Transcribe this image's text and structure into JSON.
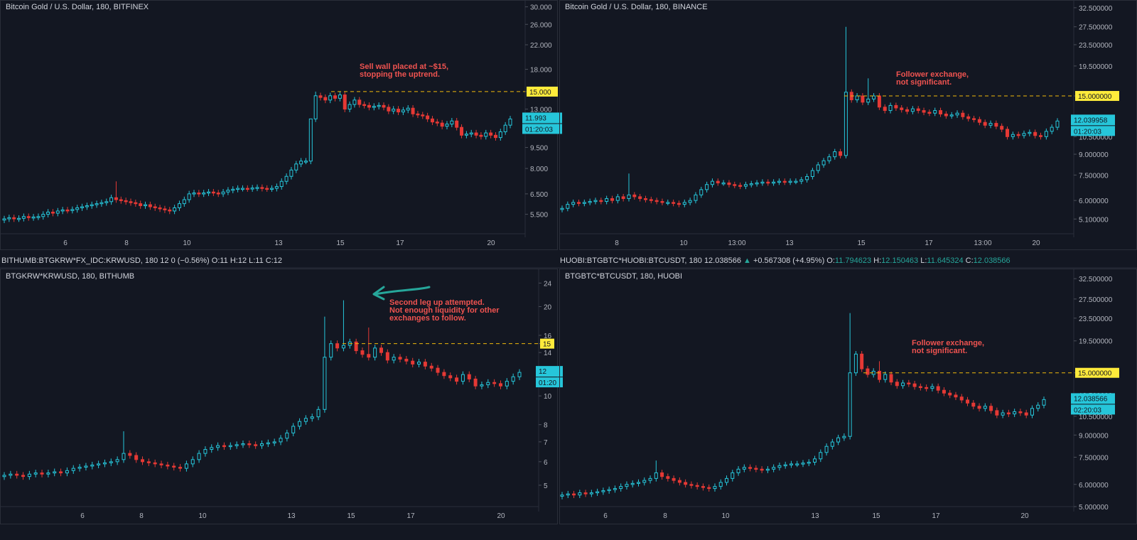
{
  "theme": {
    "background": "#131722",
    "panel_border": "#2a2e39",
    "text": "#d1d4dc",
    "axis_text": "#b2b5be",
    "up_color": "#26c6da",
    "down_color": "#e53935",
    "highlight_yellow": "#ffeb3b",
    "annotation_color": "#ef5350",
    "arrow_color": "#26a69a"
  },
  "panels": [
    {
      "id": "bitfinex",
      "title": "Bitcoin Gold / U.S. Dollar, 180, BITFINEX",
      "price_label": "11.993",
      "countdown": "01:20:03",
      "hline_label": "15.000",
      "annotation": [
        "Sell wall placed at ~$15,",
        "stopping the uptrend."
      ]
    },
    {
      "id": "binance",
      "title": "Bitcoin Gold / U.S. Dollar, 180, BINANCE",
      "price_label": "12.039958",
      "countdown": "01:20:03",
      "hline_label": "15.000000",
      "annotation": [
        "Follower exchange,",
        "not significant."
      ]
    },
    {
      "id": "bithumb",
      "header": "BITHUMB:BTGKRW*FX_IDC:KRWUSD, 180  12 0 (−0.56%) O:11 H:12 L:11 C:12",
      "title": "BTGKRW*KRWUSD, 180, BITHUMB",
      "price_label": "12",
      "countdown": "01:20",
      "hline_label": "15",
      "annotation": [
        "Second leg up attempted.",
        "Not enough liquidity for other",
        "exchanges to follow."
      ]
    },
    {
      "id": "huobi",
      "header": {
        "symbol": "HUOBI:BTGBTC*HUOBI:BTCUSDT, 180",
        "last": "12.038566",
        "change": "+0.567308 (+4.95%)",
        "o_label": "O:",
        "o": "11.794623",
        "h_label": "H:",
        "h": "12.150463",
        "l_label": "L:",
        "l": "11.645324",
        "c_label": "C:",
        "c": "12.038566"
      },
      "title": "BTGBTC*BTCUSDT, 180, HUOBI",
      "price_label": "12.038566",
      "countdown": "02:20:03",
      "hline_label": "15.000000",
      "annotation": [
        "Follower exchange,",
        "not significant."
      ]
    }
  ],
  "chart_data": [
    {
      "type": "candlestick",
      "panel": "bitfinex",
      "y_scale": "log",
      "ylim": [
        5.0,
        31.0
      ],
      "y_ticks": [
        30.0,
        26.0,
        22.0,
        18.0,
        15.0,
        13.0,
        11.0,
        9.5,
        8.0,
        6.5,
        5.5
      ],
      "y_tick_labels": [
        "30.000",
        "26.000",
        "22.000",
        "18.000",
        "15.000",
        "13.000",
        "11.000",
        "9.500",
        "8.000",
        "6.500",
        "5.500"
      ],
      "x_ticks": [
        "6",
        "8",
        "10",
        "13",
        "15",
        "17",
        "20"
      ],
      "horizontal_line": 15.0,
      "last_price": 11.993,
      "closes": [
        5.3,
        5.35,
        5.3,
        5.32,
        5.4,
        5.35,
        5.38,
        5.4,
        5.5,
        5.6,
        5.55,
        5.65,
        5.7,
        5.68,
        5.72,
        5.8,
        5.85,
        5.9,
        5.95,
        6.0,
        6.05,
        6.1,
        6.3,
        6.2,
        6.15,
        6.1,
        6.05,
        6.0,
        5.9,
        5.95,
        5.85,
        5.8,
        5.75,
        5.7,
        5.65,
        5.8,
        6.0,
        6.2,
        6.5,
        6.55,
        6.5,
        6.55,
        6.6,
        6.55,
        6.5,
        6.6,
        6.7,
        6.75,
        6.8,
        6.8,
        6.78,
        6.82,
        6.85,
        6.8,
        6.78,
        6.8,
        6.9,
        7.2,
        7.5,
        7.9,
        8.3,
        8.5,
        8.5,
        12.0,
        14.5,
        14.3,
        14.0,
        14.5,
        14.2,
        14.6,
        13.0,
        13.5,
        14.0,
        13.5,
        13.4,
        13.2,
        13.3,
        13.4,
        13.2,
        12.8,
        13.0,
        12.7,
        12.9,
        13.1,
        12.5,
        12.4,
        12.3,
        12.0,
        11.7,
        11.6,
        11.3,
        11.5,
        11.8,
        11.2,
        10.5,
        10.6,
        10.7,
        10.5,
        10.4,
        10.7,
        10.5,
        10.3,
        10.8,
        11.4,
        11.993
      ],
      "events": [
        {
          "index": 23,
          "high": 7.2
        },
        {
          "index": 63,
          "high": 9.3
        },
        {
          "index": 64,
          "high": 15.0
        }
      ]
    },
    {
      "type": "candlestick",
      "panel": "binance",
      "y_scale": "log",
      "ylim": [
        4.8,
        33.5
      ],
      "y_ticks": [
        32.5,
        27.5,
        23.5,
        19.5,
        15.0,
        12.5,
        10.5,
        9.0,
        7.5,
        6.0,
        5.1
      ],
      "y_tick_labels": [
        "32.500000",
        "27.500000",
        "23.500000",
        "19.500000",
        "15.000000",
        "12.500000",
        "10.500000",
        "9.000000",
        "7.500000",
        "6.000000",
        "5.100000"
      ],
      "x_ticks": [
        "8",
        "10",
        "13:00",
        "13",
        "15",
        "17",
        "13:00",
        "20"
      ],
      "horizontal_line": 15.0,
      "last_price": 12.039958,
      "closes": [
        5.6,
        5.8,
        5.9,
        5.85,
        5.9,
        5.95,
        6.0,
        5.95,
        6.1,
        6.0,
        6.2,
        6.1,
        6.3,
        6.2,
        6.1,
        6.05,
        6.0,
        5.95,
        5.9,
        5.9,
        5.85,
        5.8,
        5.9,
        6.0,
        6.3,
        6.6,
        6.9,
        7.1,
        7.0,
        7.0,
        6.9,
        6.85,
        6.8,
        6.9,
        6.95,
        7.0,
        7.05,
        7.0,
        7.05,
        7.1,
        7.05,
        7.1,
        7.1,
        7.2,
        7.4,
        7.8,
        8.2,
        8.5,
        8.8,
        9.2,
        8.9,
        15.5,
        14.5,
        15.0,
        14.2,
        14.6,
        15.0,
        13.6,
        13.2,
        13.8,
        13.5,
        13.3,
        13.1,
        13.4,
        13.2,
        13.0,
        12.9,
        13.2,
        12.8,
        12.6,
        12.7,
        12.9,
        12.5,
        12.3,
        12.2,
        11.9,
        11.6,
        11.8,
        11.5,
        11.2,
        10.5,
        10.7,
        10.6,
        10.8,
        10.9,
        10.6,
        10.5,
        11.0,
        11.4,
        12.04
      ],
      "events": [
        {
          "index": 12,
          "high": 7.6
        },
        {
          "index": 51,
          "high": 27.5
        },
        {
          "index": 55,
          "high": 17.5
        }
      ]
    },
    {
      "type": "candlestick",
      "panel": "bithumb",
      "y_scale": "log",
      "ylim": [
        4.5,
        25.0
      ],
      "y_ticks": [
        24,
        20,
        16,
        15,
        14,
        12,
        10,
        8,
        7,
        6,
        5
      ],
      "y_tick_labels": [
        "24",
        "20",
        "16",
        "15",
        "14",
        "12",
        "10",
        "8",
        "7",
        "6",
        "5"
      ],
      "x_ticks": [
        "6",
        "8",
        "10",
        "13",
        "15",
        "17",
        "20"
      ],
      "horizontal_line": 15,
      "last_price": 12,
      "closes": [
        5.4,
        5.45,
        5.4,
        5.35,
        5.45,
        5.5,
        5.45,
        5.5,
        5.55,
        5.5,
        5.6,
        5.7,
        5.75,
        5.8,
        5.85,
        5.9,
        5.95,
        6.0,
        6.1,
        6.4,
        6.3,
        6.1,
        6.0,
        5.95,
        5.9,
        5.85,
        5.8,
        5.75,
        5.7,
        5.9,
        6.1,
        6.4,
        6.6,
        6.7,
        6.8,
        6.75,
        6.8,
        6.85,
        6.9,
        6.85,
        6.8,
        6.9,
        6.95,
        7.0,
        7.2,
        7.5,
        7.9,
        8.2,
        8.4,
        8.5,
        9.0,
        13.5,
        15.0,
        14.5,
        14.8,
        15.2,
        14.2,
        13.8,
        13.5,
        14.5,
        14.0,
        13.2,
        13.5,
        13.3,
        13.1,
        12.8,
        13.0,
        12.6,
        12.4,
        12.0,
        11.7,
        11.5,
        11.2,
        11.8,
        11.4,
        10.8,
        10.9,
        11.1,
        11.0,
        10.8,
        11.2,
        11.6,
        12.0
      ],
      "events": [
        {
          "index": 19,
          "high": 7.6
        },
        {
          "index": 51,
          "high": 18.5
        },
        {
          "index": 54,
          "high": 21.0
        },
        {
          "index": 58,
          "high": 17.0
        }
      ]
    },
    {
      "type": "candlestick",
      "panel": "huobi",
      "y_scale": "log",
      "ylim": [
        4.8,
        33.5
      ],
      "y_ticks": [
        32.5,
        27.5,
        23.5,
        19.5,
        15.0,
        12.5,
        10.5,
        9.0,
        7.5,
        6.0,
        5.0
      ],
      "y_tick_labels": [
        "32.500000",
        "27.500000",
        "23.500000",
        "19.500000",
        "15.000000",
        "12.500000",
        "10.500000",
        "9.000000",
        "7.500000",
        "6.000000",
        "5.000000"
      ],
      "x_ticks": [
        "6",
        "8",
        "10",
        "13",
        "15",
        "17",
        "20"
      ],
      "horizontal_line": 15.0,
      "last_price": 12.038566,
      "closes": [
        5.5,
        5.55,
        5.5,
        5.6,
        5.55,
        5.6,
        5.65,
        5.7,
        5.75,
        5.8,
        5.9,
        6.0,
        6.05,
        6.1,
        6.2,
        6.3,
        6.6,
        6.4,
        6.3,
        6.2,
        6.1,
        6.0,
        5.95,
        5.9,
        5.85,
        5.8,
        5.9,
        6.1,
        6.3,
        6.6,
        6.8,
        6.9,
        6.85,
        6.8,
        6.75,
        6.8,
        6.9,
        7.0,
        7.05,
        7.1,
        7.1,
        7.15,
        7.2,
        7.4,
        7.8,
        8.2,
        8.5,
        8.8,
        8.9,
        15.0,
        17.5,
        15.5,
        14.8,
        15.2,
        14.2,
        14.8,
        13.9,
        13.5,
        13.8,
        13.7,
        13.4,
        13.3,
        13.2,
        13.4,
        13.0,
        12.7,
        12.5,
        12.3,
        12.0,
        11.7,
        11.4,
        11.2,
        11.4,
        11.0,
        10.6,
        10.8,
        10.7,
        10.9,
        10.8,
        10.6,
        11.2,
        11.5,
        12.04
      ],
      "events": [
        {
          "index": 16,
          "high": 7.3
        },
        {
          "index": 49,
          "high": 24.5
        },
        {
          "index": 54,
          "high": 16.5
        }
      ]
    }
  ]
}
